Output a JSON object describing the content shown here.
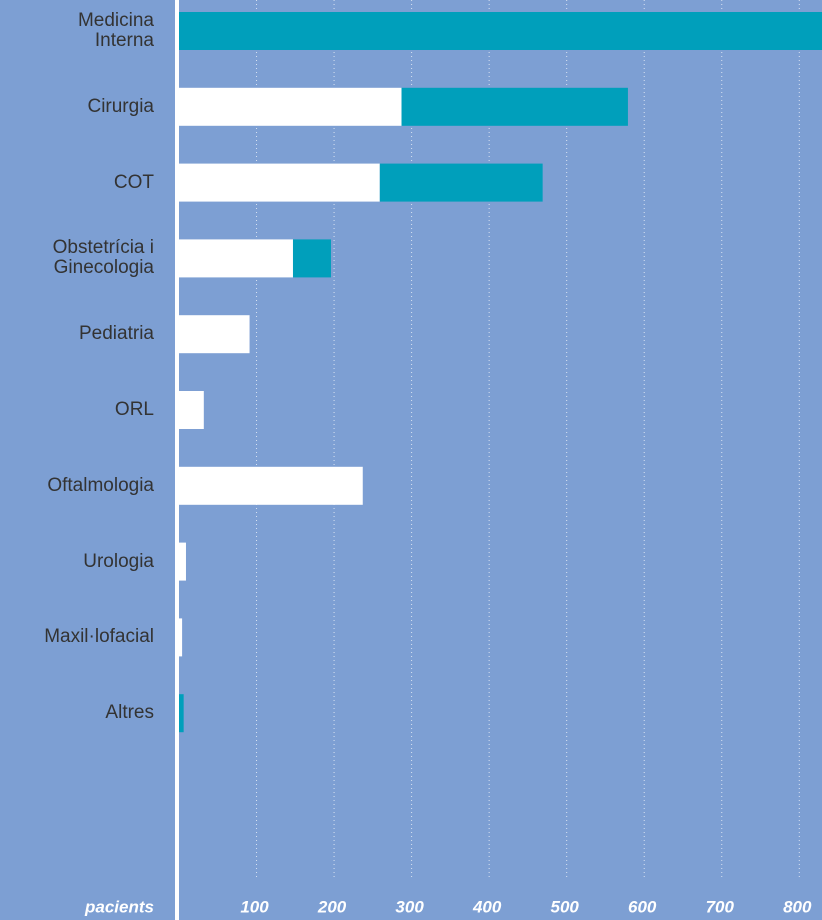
{
  "chart_data": {
    "type": "stacked-barh",
    "categories": [
      "Medicina\nInterna",
      "Cirurgia",
      "COT",
      "Obstetrícia i\nGinecologia",
      "Pediatria",
      "ORL",
      "Oftalmologia",
      "Urologia",
      "Maxil·lofacial",
      "Altres"
    ],
    "series": [
      {
        "color": "#ffffff",
        "values": [
          0,
          287,
          259,
          147,
          91,
          32,
          237,
          9,
          4,
          0
        ]
      },
      {
        "color": "#009fbb",
        "values": [
          830,
          292,
          210,
          49,
          0,
          0,
          0,
          0,
          0,
          6
        ]
      }
    ],
    "xlabel": "pacients",
    "xlim": [
      0,
      828
    ],
    "xticks": [
      100,
      200,
      300,
      400,
      500,
      600,
      700,
      800
    ],
    "grid": true
  }
}
